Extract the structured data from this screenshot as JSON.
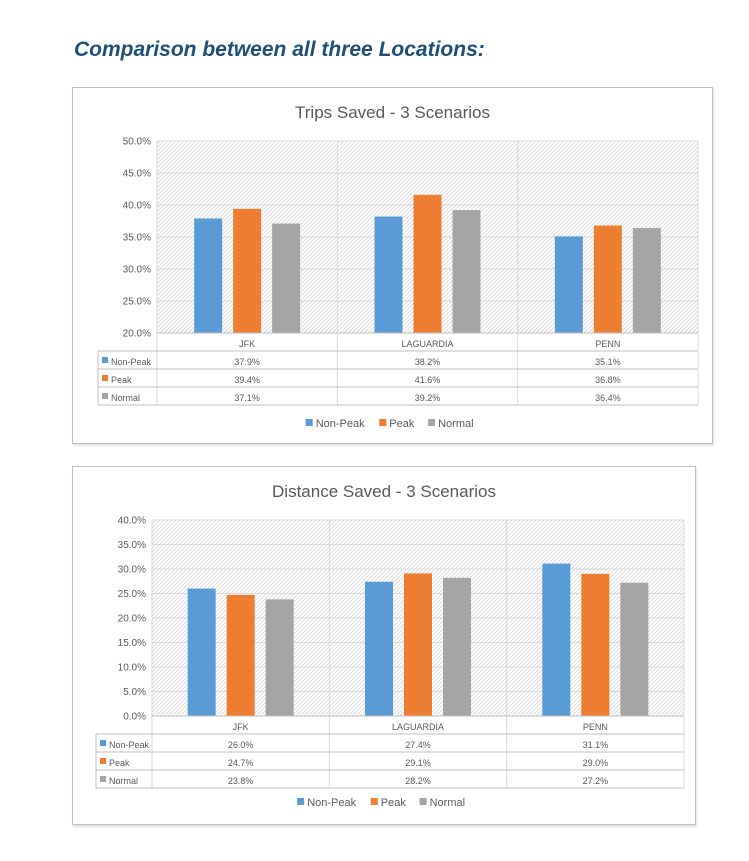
{
  "heading": "Comparison between all three Locations:",
  "chart_data": [
    {
      "type": "bar",
      "title": "Trips Saved - 3 Scenarios",
      "categories": [
        "JFK",
        "LAGUARDIA",
        "PENN"
      ],
      "series": [
        {
          "name": "Non-Peak",
          "color": "#5b9bd5",
          "values": [
            37.9,
            38.2,
            35.1
          ],
          "labels": [
            "37.9%",
            "38.2%",
            "35.1%"
          ]
        },
        {
          "name": "Peak",
          "color": "#ed7d31",
          "values": [
            39.4,
            41.6,
            36.8
          ],
          "labels": [
            "39.4%",
            "41.6%",
            "36.8%"
          ]
        },
        {
          "name": "Normal",
          "color": "#a5a5a5",
          "values": [
            37.1,
            39.2,
            36.4
          ],
          "labels": [
            "37.1%",
            "39.2%",
            "36.4%"
          ]
        }
      ],
      "ylim": [
        20,
        50
      ],
      "yticks": [
        "20.0%",
        "25.0%",
        "30.0%",
        "35.0%",
        "40.0%",
        "45.0%",
        "50.0%"
      ],
      "legend": "bottom",
      "grid": true,
      "data_table": true
    },
    {
      "type": "bar",
      "title": "Distance Saved - 3 Scenarios",
      "categories": [
        "JFK",
        "LAGUARDIA",
        "PENN"
      ],
      "series": [
        {
          "name": "Non-Peak",
          "color": "#5b9bd5",
          "values": [
            26.0,
            27.4,
            31.1
          ],
          "labels": [
            "26.0%",
            "27.4%",
            "31.1%"
          ]
        },
        {
          "name": "Peak",
          "color": "#ed7d31",
          "values": [
            24.7,
            29.1,
            29.0
          ],
          "labels": [
            "24.7%",
            "29.1%",
            "29.0%"
          ]
        },
        {
          "name": "Normal",
          "color": "#a5a5a5",
          "values": [
            23.8,
            28.2,
            27.2
          ],
          "labels": [
            "23.8%",
            "28.2%",
            "27.2%"
          ]
        }
      ],
      "ylim": [
        0,
        40
      ],
      "yticks": [
        "0.0%",
        "5.0%",
        "10.0%",
        "15.0%",
        "20.0%",
        "25.0%",
        "30.0%",
        "35.0%",
        "40.0%"
      ],
      "legend": "bottom",
      "grid": true,
      "data_table": true
    }
  ]
}
